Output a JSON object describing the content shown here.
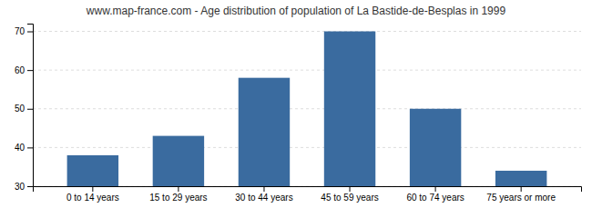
{
  "chart_data": {
    "type": "bar",
    "title": "www.map-france.com - Age distribution of population of La Bastide-de-Besplas in 1999",
    "categories": [
      "0 to 14 years",
      "15 to 29 years",
      "30 to 44 years",
      "45 to 59 years",
      "60 to 74 years",
      "75 years or more"
    ],
    "values": [
      38,
      43,
      58,
      70,
      50,
      34
    ],
    "color": "#3a6b9f",
    "ylim": [
      30,
      72
    ],
    "yticks": [
      30,
      40,
      50,
      60,
      70
    ],
    "grid": true
  }
}
